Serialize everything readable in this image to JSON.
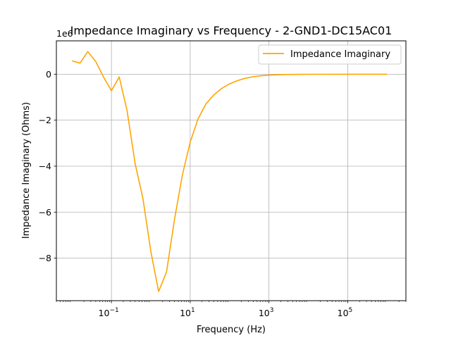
{
  "chart_data": {
    "type": "line",
    "title": "Impedance Imaginary vs Frequency - 2-GND1-DC15AC01",
    "xlabel": "Frequency (Hz)",
    "ylabel": "Impedance Imaginary (Ohms)",
    "x_scale": "log",
    "xlim": [
      0.004,
      3000000
    ],
    "ylim": [
      -9.85,
      1.45
    ],
    "y_multiplier_label": "1e6",
    "grid": true,
    "legend_position": "upper right",
    "x_ticks": [
      {
        "value": 0.1,
        "base": "10",
        "exp": "−1"
      },
      {
        "value": 10,
        "base": "10",
        "exp": "1"
      },
      {
        "value": 1000,
        "base": "10",
        "exp": "3"
      },
      {
        "value": 100000,
        "base": "10",
        "exp": "5"
      }
    ],
    "y_ticks": [
      {
        "value": 0,
        "label": "0"
      },
      {
        "value": -2,
        "label": "−2"
      },
      {
        "value": -4,
        "label": "−4"
      },
      {
        "value": -6,
        "label": "−6"
      },
      {
        "value": -8,
        "label": "−8"
      }
    ],
    "series": [
      {
        "name": "Impedance Imaginary",
        "color": "#FFA500",
        "x": [
          0.01,
          0.016,
          0.025,
          0.04,
          0.063,
          0.1,
          0.158,
          0.25,
          0.4,
          0.63,
          1.0,
          1.58,
          2.5,
          4.0,
          6.3,
          10,
          15.8,
          25,
          40,
          63,
          100,
          158,
          251,
          398,
          631,
          1000,
          1585,
          2512,
          3981,
          6310,
          10000,
          100000,
          1000000
        ],
        "y": [
          0.58,
          0.48,
          0.98,
          0.55,
          -0.12,
          -0.72,
          -0.12,
          -1.6,
          -3.9,
          -5.4,
          -7.7,
          -9.45,
          -8.6,
          -6.3,
          -4.4,
          -2.95,
          -1.95,
          -1.3,
          -0.9,
          -0.62,
          -0.42,
          -0.28,
          -0.18,
          -0.11,
          -0.07,
          -0.04,
          -0.025,
          -0.015,
          -0.01,
          -0.007,
          -0.005,
          -0.002,
          -0.001
        ]
      }
    ]
  }
}
